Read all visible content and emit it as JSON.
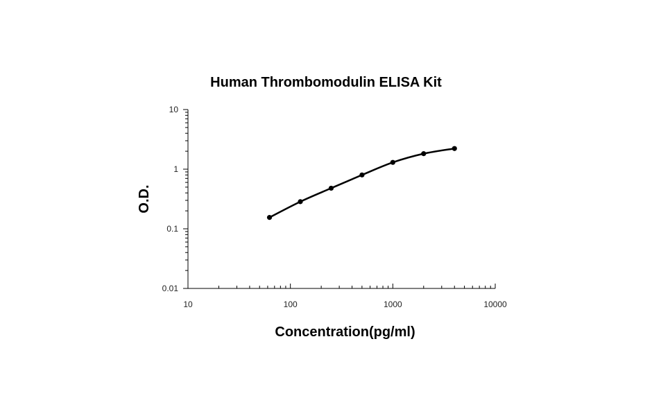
{
  "chart_data": {
    "type": "scatter",
    "title": "Human Thrombomodulin ELISA Kit",
    "xlabel": "Concentration(pg/ml)",
    "ylabel": "O.D.",
    "x_scale": "log",
    "y_scale": "log",
    "xlim": [
      10,
      10000
    ],
    "ylim": [
      0.01,
      10
    ],
    "x_ticks": [
      "10",
      "100",
      "1000",
      "10000"
    ],
    "y_ticks": [
      "0.01",
      "0.1",
      "1",
      "10"
    ],
    "grid": false,
    "legend": "none",
    "series": [
      {
        "x": [
          62.5,
          125,
          250,
          500,
          1000,
          2000,
          4000
        ],
        "y": [
          0.155,
          0.285,
          0.48,
          0.8,
          1.3,
          1.82,
          2.22
        ],
        "smooth_line": true
      }
    ],
    "colors": {
      "line": "#000000",
      "markers": "#000000"
    }
  }
}
